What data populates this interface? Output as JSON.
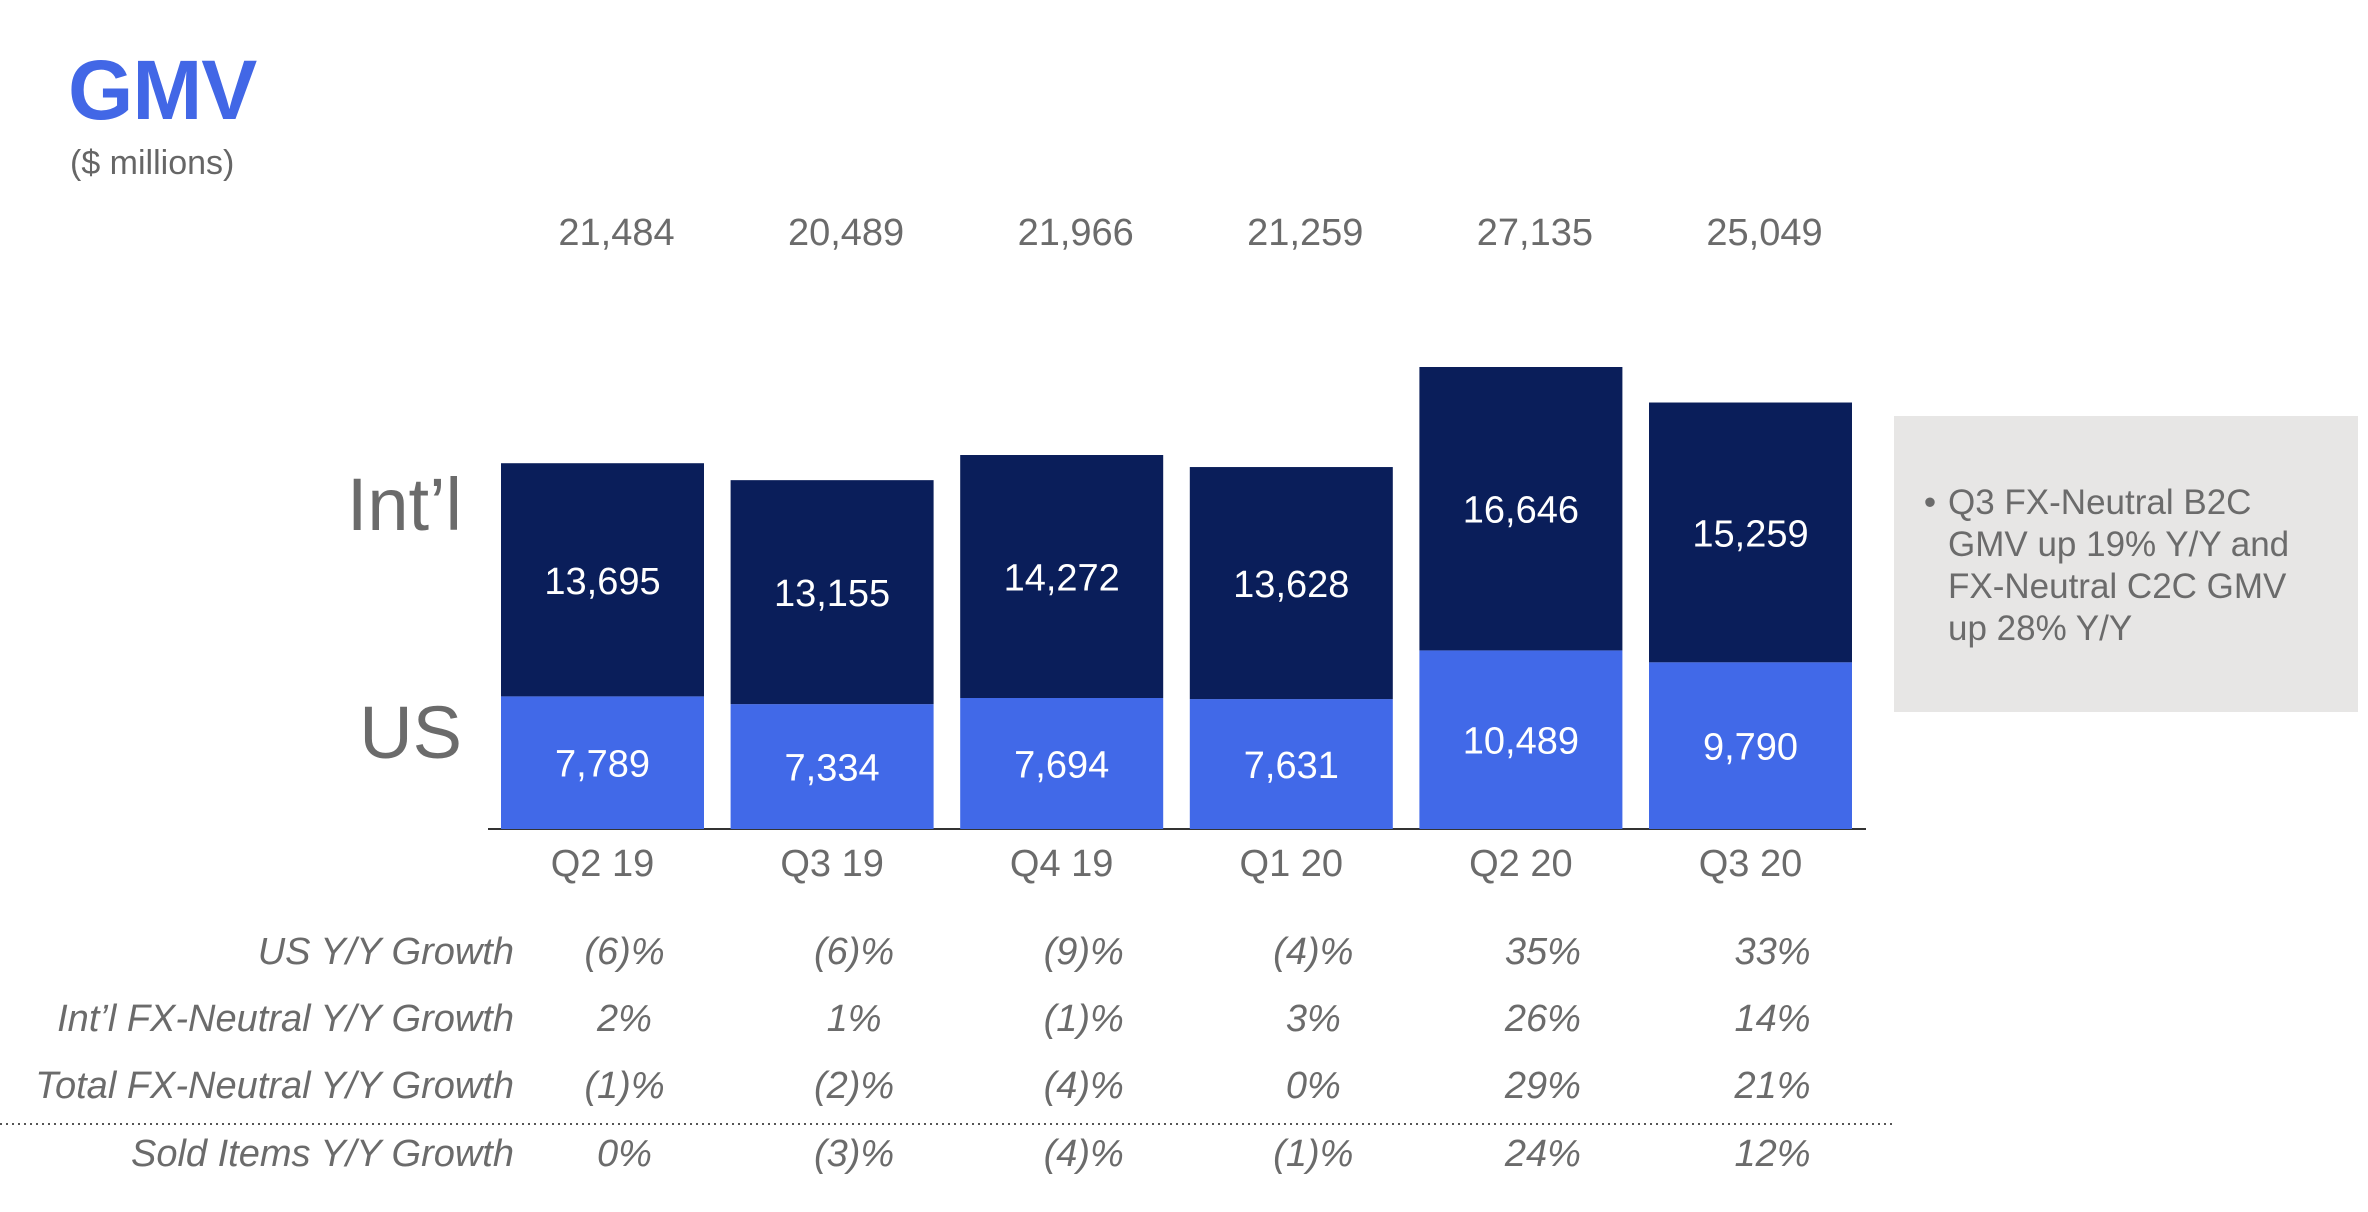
{
  "title": "GMV",
  "subtitle": "($ millions)",
  "note": {
    "bullet": "•",
    "text": "Q3 FX-Neutral B2C GMV up 19% Y/Y and FX-Neutral C2C GMV up 28% Y/Y"
  },
  "chart_data": {
    "type": "bar",
    "stacked": true,
    "categories": [
      "Q2 19",
      "Q3 19",
      "Q4 19",
      "Q1 20",
      "Q2 20",
      "Q3 20"
    ],
    "series": [
      {
        "name": "US",
        "values": [
          7789,
          7334,
          7694,
          7631,
          10489,
          9790
        ],
        "value_labels": [
          "7,789",
          "7,334",
          "7,694",
          "7,631",
          "10,489",
          "9,790"
        ],
        "color": "#4169e8"
      },
      {
        "name": "Int’l",
        "values": [
          13695,
          13155,
          14272,
          13628,
          16646,
          15259
        ],
        "value_labels": [
          "13,695",
          "13,155",
          "14,272",
          "13,628",
          "16,646",
          "15,259"
        ],
        "color": "#0a1e5a"
      }
    ],
    "totals": [
      21484,
      20489,
      21966,
      21259,
      27135,
      25049
    ],
    "total_labels": [
      "21,484",
      "20,489",
      "21,966",
      "21,259",
      "27,135",
      "25,049"
    ],
    "ylim": [
      0,
      27135
    ],
    "grid": false,
    "legend": "left of bars",
    "title": "GMV",
    "subtitle": "($ millions)"
  },
  "growth_table": {
    "rows": [
      {
        "label": "US Y/Y Growth",
        "values": [
          "(6)%",
          "(6)%",
          "(9)%",
          "(4)%",
          "35%",
          "33%"
        ]
      },
      {
        "label": "Int’l FX-Neutral Y/Y Growth",
        "values": [
          "2%",
          "1%",
          "(1)%",
          "3%",
          "26%",
          "14%"
        ]
      },
      {
        "label": "Total FX-Neutral Y/Y Growth",
        "values": [
          "(1)%",
          "(2)%",
          "(4)%",
          "0%",
          "29%",
          "21%"
        ]
      },
      {
        "label": "Sold Items Y/Y Growth",
        "values": [
          "0%",
          "(3)%",
          "(4)%",
          "(1)%",
          "24%",
          "12%"
        ]
      }
    ]
  }
}
